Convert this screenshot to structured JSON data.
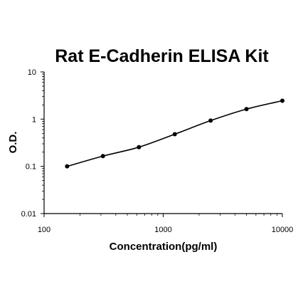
{
  "chart_data": {
    "type": "scatter",
    "title": "Rat E-Cadherin ELISA Kit",
    "xlabel": "Concentration(pg/ml)",
    "ylabel": "O.D.",
    "x_scale": "log",
    "y_scale": "log",
    "xlim": [
      100,
      10000
    ],
    "ylim": [
      0.01,
      10
    ],
    "x_ticks": [
      "100",
      "1000",
      "10000"
    ],
    "y_ticks": [
      "0.01",
      "0.1",
      "1",
      "10"
    ],
    "grid": false,
    "series": [
      {
        "points": [
          {
            "x": 156,
            "y": 0.1
          },
          {
            "x": 312,
            "y": 0.165
          },
          {
            "x": 625,
            "y": 0.255
          },
          {
            "x": 1250,
            "y": 0.48
          },
          {
            "x": 2500,
            "y": 0.93
          },
          {
            "x": 5000,
            "y": 1.63
          },
          {
            "x": 10000,
            "y": 2.45
          }
        ],
        "fit_curve": true,
        "marker_color": "#000000",
        "line_color": "#000000"
      }
    ]
  }
}
